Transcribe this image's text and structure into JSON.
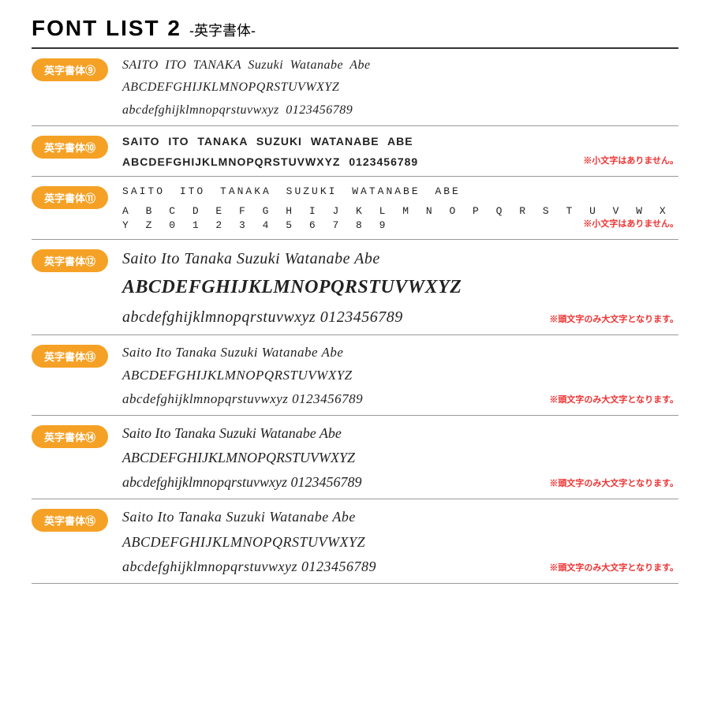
{
  "header": {
    "title": "FONT LIST 2",
    "subtitle": "-英字書体-"
  },
  "colors": {
    "badge_bg": "#f5a125",
    "badge_text": "#ffffff",
    "note_text": "#e33333",
    "rule": "#999999",
    "header_rule": "#333333",
    "page_bg": "#ffffff",
    "text": "#222222"
  },
  "rows": [
    {
      "id": "9",
      "badge": "英字書体⑨",
      "lines": [
        "SAITO  ITO  TANAKA  Suzuki  Watanabe Abe",
        "ABCDEFGHIJKLMNOPQRSTUVWXYZ",
        "abcdefghijklmnopqrstuvwxyz  0123456789"
      ],
      "note": "",
      "font_style": "italic-serif"
    },
    {
      "id": "10",
      "badge": "英字書体⑩",
      "lines": [
        "SAITO  ITO  TANAKA  SUZUKI  WATANABE  ABE",
        "ABCDEFGHIJKLMNOPQRSTUVWXYZ  0123456789"
      ],
      "note": "※小文字はありません。",
      "font_style": "condensed-sans"
    },
    {
      "id": "11",
      "badge": "英字書体⑪",
      "lines": [
        "SAITO   ITO   TANAKA   SUZUKI   WATANABE   ABE",
        "A B C D E F G H I J K L M N O P Q R S T U V W X Y Z     0 1 2 3 4 5 6 7 8 9"
      ],
      "note": "※小文字はありません。",
      "font_style": "spaced-thin"
    },
    {
      "id": "12",
      "badge": "英字書体⑫",
      "lines": [
        "Saito Ito Tanaka Suzuki Watanabe Abe",
        "ABCDEFGHIJKLMNOPQRSTUVWXYZ",
        "abcdefghijklmnopqrstuvwxyz 0123456789"
      ],
      "note": "※頭文字のみ大文字となります。",
      "font_style": "brush-script"
    },
    {
      "id": "13",
      "badge": "英字書体⑬",
      "lines": [
        "Saito  Ito  Tanaka  Suzuki  Watanabe  Abe",
        "ABCDEFGHIJKLMNOPQRSTUVWXYZ",
        "abcdefghijklmnopqrstuvwxyz  0123456789"
      ],
      "note": "※頭文字のみ大文字となります。",
      "font_style": "italic-elegant-serif"
    },
    {
      "id": "14",
      "badge": "英字書体⑭",
      "lines": [
        "Saito Ito Tanaka Suzuki Watanabe Abe",
        "ABCDEFGHIJKLMNOPQRSTUVWXYZ",
        "abcdefghijklmnopqrstuvwxyz 0123456789"
      ],
      "note": "※頭文字のみ大文字となります。",
      "font_style": "handwriting-cursive"
    },
    {
      "id": "15",
      "badge": "英字書体⑮",
      "lines": [
        "Saito  Ito  Tanaka  Suzuki  Watanabe  Abe",
        "ABCDEFGHIJKLMNOPQRSTUVWXYZ",
        "abcdefghijklmnopqrstuvwxyz  0123456789"
      ],
      "note": "※頭文字のみ大文字となります。",
      "font_style": "script-wide"
    }
  ]
}
